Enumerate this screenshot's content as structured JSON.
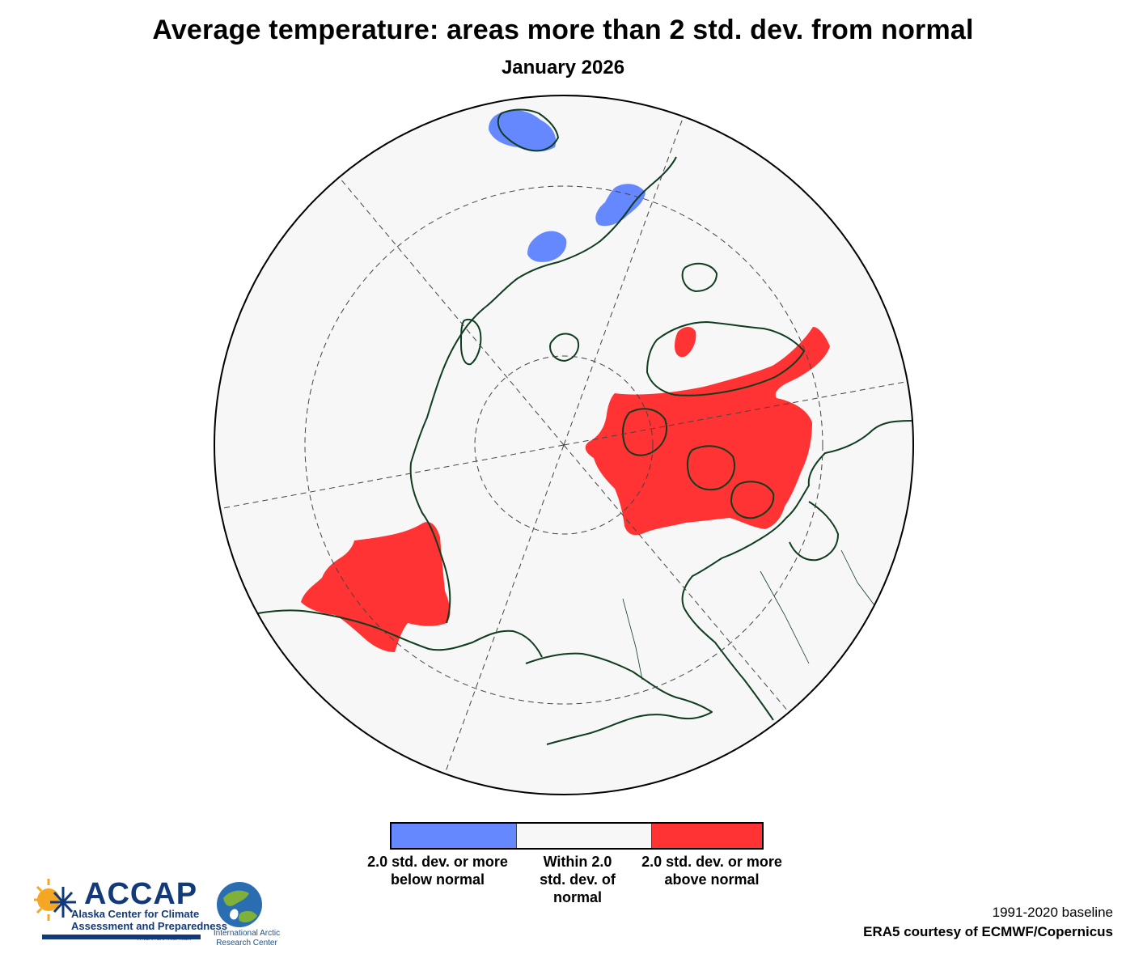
{
  "title": "Average temperature: areas more than 2 std. dev. from normal",
  "subtitle": "January 2026",
  "colors": {
    "below": "#6688ff",
    "within": "#f7f7f7",
    "above": "#ff3333",
    "coast": "#0f3d1f",
    "grid": "#444444"
  },
  "legend": {
    "below_label_line1": "2.0 std. dev. or more",
    "below_label_line2": "below normal",
    "within_label_line1": "Within 2.0",
    "within_label_line2": "std. dev. of",
    "within_label_line3": "normal",
    "above_label_line1": "2.0 std. dev. or more",
    "above_label_line2": "above normal"
  },
  "credits": {
    "baseline": "1991-2020 baseline",
    "source": "ERA5 courtesy of ECMWF/Copernicus"
  },
  "logos": {
    "accap_name": "ACCAP",
    "accap_line1": "Alaska Center for Climate",
    "accap_line2": "Assessment and Preparedness",
    "accap_team": "A NOAA CAP/RISA team",
    "iarc_line1": "International Arctic",
    "iarc_line2": "Research Center"
  }
}
